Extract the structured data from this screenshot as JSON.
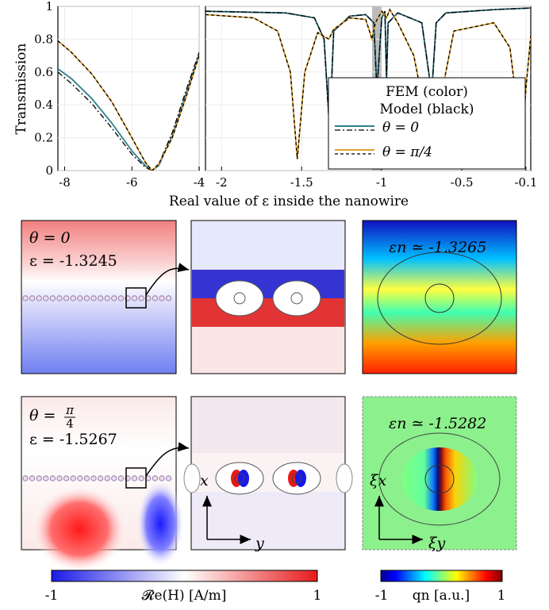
{
  "chart_data": [
    {
      "type": "line",
      "panel": "left",
      "ylabel": "Transmission",
      "xlim": [
        -8.2,
        -4.0
      ],
      "ylim": [
        0,
        1
      ],
      "xticks": [
        -8,
        -6,
        -4
      ],
      "yticks": [
        0,
        0.2,
        0.4,
        0.6,
        0.8,
        1
      ],
      "series": [
        {
          "color": "#2f7f8f",
          "style": "solid",
          "x": [
            -8.2,
            -7.8,
            -7.2,
            -6.6,
            -6.0,
            -5.6,
            -5.4,
            -5.2,
            -4.8,
            -4.4,
            -4.0
          ],
          "y": [
            0.62,
            0.56,
            0.44,
            0.29,
            0.12,
            0.03,
            0.0,
            0.03,
            0.21,
            0.46,
            0.71
          ]
        },
        {
          "color": "#000000",
          "style": "dashdot",
          "x": [
            -8.2,
            -7.8,
            -7.2,
            -6.6,
            -6.0,
            -5.6,
            -5.4,
            -5.2,
            -4.8,
            -4.4,
            -4.0
          ],
          "y": [
            0.6,
            0.53,
            0.41,
            0.26,
            0.1,
            0.02,
            0.0,
            0.04,
            0.23,
            0.48,
            0.72
          ]
        },
        {
          "color": "#e0a030",
          "style": "solid",
          "x": [
            -8.2,
            -7.8,
            -7.2,
            -6.6,
            -6.0,
            -5.6,
            -5.4,
            -5.2,
            -4.8,
            -4.4,
            -4.0
          ],
          "y": [
            0.79,
            0.72,
            0.59,
            0.42,
            0.2,
            0.05,
            0.0,
            0.04,
            0.2,
            0.44,
            0.7
          ]
        },
        {
          "color": "#000000",
          "style": "dashed",
          "x": [
            -8.2,
            -7.8,
            -7.2,
            -6.6,
            -6.0,
            -5.6,
            -5.4,
            -5.2,
            -4.8,
            -4.4,
            -4.0
          ],
          "y": [
            0.79,
            0.72,
            0.59,
            0.42,
            0.2,
            0.05,
            0.0,
            0.04,
            0.2,
            0.44,
            0.7
          ]
        }
      ]
    },
    {
      "type": "line",
      "panel": "right",
      "xlabel": "Real value of ε inside the nanowire",
      "xlim": [
        -2.1,
        -0.07
      ],
      "ylim": [
        0,
        1
      ],
      "xticks": [
        -2,
        -1.5,
        -1,
        -0.5,
        -0.1
      ],
      "highlight_band": [
        -1.06,
        -1.0
      ],
      "legend": {
        "title": [
          "FEM (color)",
          "Model (black)"
        ],
        "entries": [
          "θ = 0",
          "θ = π/4"
        ],
        "placement": "lower-right"
      },
      "series": [
        {
          "name": "θ = 0",
          "color": "#1f5f6f",
          "style": "solid",
          "x": [
            -2.1,
            -1.6,
            -1.42,
            -1.36,
            -1.325,
            -1.3,
            -1.2,
            -1.1,
            -1.05,
            -1.03,
            -1.0,
            -0.98,
            -0.97,
            -0.96,
            -0.9,
            -0.75,
            -0.7,
            -0.69,
            -0.66,
            -0.6,
            -0.3,
            -0.07
          ],
          "y": [
            0.97,
            0.96,
            0.93,
            0.8,
            0.25,
            0.85,
            0.94,
            0.95,
            0.9,
            0.5,
            0.93,
            0.97,
            0.55,
            0.9,
            0.96,
            0.9,
            0.55,
            0.45,
            0.9,
            0.96,
            0.98,
            0.99
          ]
        },
        {
          "name": "θ = 0",
          "color": "#000000",
          "style": "dashdot",
          "x": [
            -2.1,
            -1.6,
            -1.42,
            -1.36,
            -1.325,
            -1.3,
            -1.2,
            -1.1,
            -1.05,
            -1.03,
            -1.0,
            -0.98,
            -0.97,
            -0.96,
            -0.9,
            -0.75,
            -0.7,
            -0.69,
            -0.66,
            -0.6,
            -0.3,
            -0.07
          ],
          "y": [
            0.97,
            0.96,
            0.93,
            0.8,
            0.23,
            0.85,
            0.94,
            0.95,
            0.9,
            0.48,
            0.93,
            0.97,
            0.55,
            0.9,
            0.96,
            0.9,
            0.55,
            0.43,
            0.9,
            0.96,
            0.98,
            0.99
          ]
        },
        {
          "name": "θ = π/4",
          "color": "#e0a030",
          "style": "solid",
          "x": [
            -2.1,
            -1.8,
            -1.65,
            -1.57,
            -1.527,
            -1.48,
            -1.4,
            -1.33,
            -1.3,
            -1.2,
            -1.1,
            -1.06,
            -1.04,
            -1.0,
            -0.97,
            -0.95,
            -0.9,
            -0.8,
            -0.72,
            -0.69,
            -0.65,
            -0.55,
            -0.3,
            -0.2,
            -0.15,
            -0.13,
            -0.1,
            -0.07
          ],
          "y": [
            0.95,
            0.93,
            0.85,
            0.6,
            0.07,
            0.6,
            0.84,
            0.8,
            0.86,
            0.93,
            0.92,
            0.8,
            0.9,
            0.97,
            0.93,
            0.98,
            0.9,
            0.7,
            0.3,
            0.1,
            0.35,
            0.85,
            0.9,
            0.75,
            0.35,
            0.05,
            0.5,
            0.82
          ]
        },
        {
          "name": "θ = π/4",
          "color": "#000000",
          "style": "dashed",
          "x": [
            -2.1,
            -1.8,
            -1.65,
            -1.57,
            -1.527,
            -1.48,
            -1.4,
            -1.33,
            -1.3,
            -1.2,
            -1.1,
            -1.06,
            -1.04,
            -1.0,
            -0.97,
            -0.95,
            -0.9,
            -0.8,
            -0.72,
            -0.69,
            -0.65,
            -0.55,
            -0.3,
            -0.2,
            -0.15,
            -0.13,
            -0.1,
            -0.07
          ],
          "y": [
            0.95,
            0.93,
            0.85,
            0.6,
            0.07,
            0.6,
            0.84,
            0.8,
            0.86,
            0.93,
            0.92,
            0.8,
            0.9,
            0.97,
            0.93,
            0.98,
            0.9,
            0.7,
            0.3,
            0.1,
            0.35,
            0.85,
            0.9,
            0.75,
            0.35,
            0.05,
            0.5,
            0.82
          ]
        }
      ]
    }
  ],
  "fields": {
    "row1": {
      "theta": "θ = 0",
      "eps": "ε = -1.3245",
      "eps_n": "εn ≃ -1.3265"
    },
    "row2": {
      "theta_prefix": "θ = ",
      "theta_num": "π",
      "theta_den": "4",
      "eps": "ε = -1.5267",
      "eps_n": "εn ≃ -1.5282"
    }
  },
  "axes_labels": {
    "x": "x",
    "y": "y",
    "xi_x": "ξx",
    "xi_y": "ξy"
  },
  "colorbars": {
    "field": {
      "label": "𝓡e(H) [A/m]",
      "min": "-1",
      "max": "1"
    },
    "qn": {
      "label": "qn [a.u.]",
      "min": "-1",
      "max": "1"
    }
  },
  "colors": {
    "teal": "#2f7f8f",
    "orange": "#e0a030",
    "highlight": "#bbbbbb"
  }
}
